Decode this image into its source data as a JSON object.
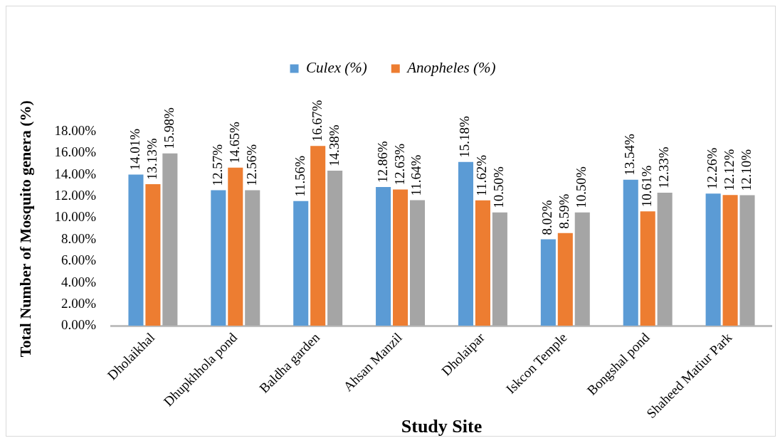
{
  "chart_data": {
    "type": "bar",
    "xlabel": "Study Site",
    "ylabel": "Total Number of Mosquito genera (%)",
    "categories": [
      "Dholaikhal",
      "Dhupkhhola pond",
      "Baldha garden",
      "Ahsan Manzil",
      "Dholaipar",
      "Iskcon Temple",
      "Bongshal pond",
      "Shaheed Matiur Park"
    ],
    "series": [
      {
        "name": "Culex (%)",
        "color": "#5b9bd5",
        "values": [
          14.01,
          12.57,
          11.56,
          12.86,
          15.18,
          8.02,
          13.54,
          12.26
        ],
        "value_labels": [
          "14.01%",
          "12.57%",
          "11.56%",
          "12.86%",
          "15.18%",
          "8.02%",
          "13.54%",
          "12.26%"
        ]
      },
      {
        "name": "Anopheles (%)",
        "color": "#ed7d31",
        "values": [
          13.13,
          14.65,
          16.67,
          12.63,
          11.62,
          8.59,
          10.61,
          12.12
        ],
        "value_labels": [
          "13.13%",
          "14.65%",
          "16.67%",
          "12.63%",
          "11.62%",
          "8.59%",
          "10.61%",
          "12.12%"
        ]
      },
      {
        "color": "#a5a5a5",
        "values": [
          15.98,
          12.56,
          14.38,
          11.64,
          10.5,
          10.5,
          12.33,
          12.1
        ],
        "value_labels": [
          "15.98%",
          "12.56%",
          "14.38%",
          "11.64%",
          "10.50%",
          "10.50%",
          "12.33%",
          "12.10%"
        ]
      }
    ],
    "ylim": [
      0,
      18
    ],
    "yticks": [
      {
        "value": 0,
        "label": "0.00%"
      },
      {
        "value": 2,
        "label": "2.00%"
      },
      {
        "value": 4,
        "label": "4.00%"
      },
      {
        "value": 6,
        "label": "6.00%"
      },
      {
        "value": 8,
        "label": "8.00%"
      },
      {
        "value": 10,
        "label": "10.00%"
      },
      {
        "value": 12,
        "label": "12.00%"
      },
      {
        "value": 14,
        "label": "14.00%"
      },
      {
        "value": 16,
        "label": "16.00%"
      },
      {
        "value": 18,
        "label": "18.00%"
      }
    ],
    "grid": false,
    "legend": "top"
  }
}
